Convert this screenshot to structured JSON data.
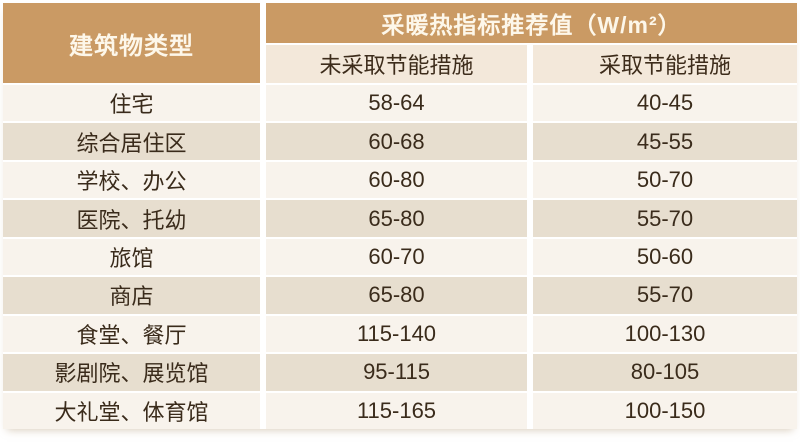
{
  "colors": {
    "header_bg": "#ca9a64",
    "subheader_bg": "#f3e8da",
    "row_light_bg": "#f8f3ec",
    "row_dark_bg": "#e7decf",
    "header_text": "#fdf7ea",
    "body_text": "#3a2b1b",
    "divider": "#ffffff"
  },
  "table": {
    "corner_header": "建筑物类型",
    "group_header": "采暖热指标推荐值（W/m²）",
    "sub_headers": {
      "no_measures": "未采取节能措施",
      "with_measures": "采取节能措施"
    },
    "rows": [
      {
        "type": "住宅",
        "no_measures": "58-64",
        "with_measures": "40-45"
      },
      {
        "type": "综合居住区",
        "no_measures": "60-68",
        "with_measures": "45-55"
      },
      {
        "type": "学校、办公",
        "no_measures": "60-80",
        "with_measures": "50-70"
      },
      {
        "type": "医院、托幼",
        "no_measures": "65-80",
        "with_measures": "55-70"
      },
      {
        "type": "旅馆",
        "no_measures": "60-70",
        "with_measures": "50-60"
      },
      {
        "type": "商店",
        "no_measures": "65-80",
        "with_measures": "55-70"
      },
      {
        "type": "食堂、餐厅",
        "no_measures": "115-140",
        "with_measures": "100-130"
      },
      {
        "type": "影剧院、展览馆",
        "no_measures": "95-115",
        "with_measures": "80-105"
      },
      {
        "type": "大礼堂、体育馆",
        "no_measures": "115-165",
        "with_measures": "100-150"
      }
    ]
  },
  "chart_data": {
    "type": "table",
    "title": "采暖热指标推荐值（W/m²）",
    "columns": [
      "建筑物类型",
      "未采取节能措施",
      "采取节能措施"
    ],
    "categories": [
      "住宅",
      "综合居住区",
      "学校、办公",
      "医院、托幼",
      "旅馆",
      "商店",
      "食堂、餐厅",
      "影剧院、展览馆",
      "大礼堂、体育馆"
    ],
    "series": [
      {
        "name": "未采取节能措施",
        "values": [
          "58-64",
          "60-68",
          "60-80",
          "65-80",
          "60-70",
          "65-80",
          "115-140",
          "95-115",
          "115-165"
        ]
      },
      {
        "name": "采取节能措施",
        "values": [
          "40-45",
          "45-55",
          "50-70",
          "55-70",
          "50-60",
          "55-70",
          "100-130",
          "80-105",
          "100-150"
        ]
      }
    ],
    "unit": "W/m²"
  }
}
